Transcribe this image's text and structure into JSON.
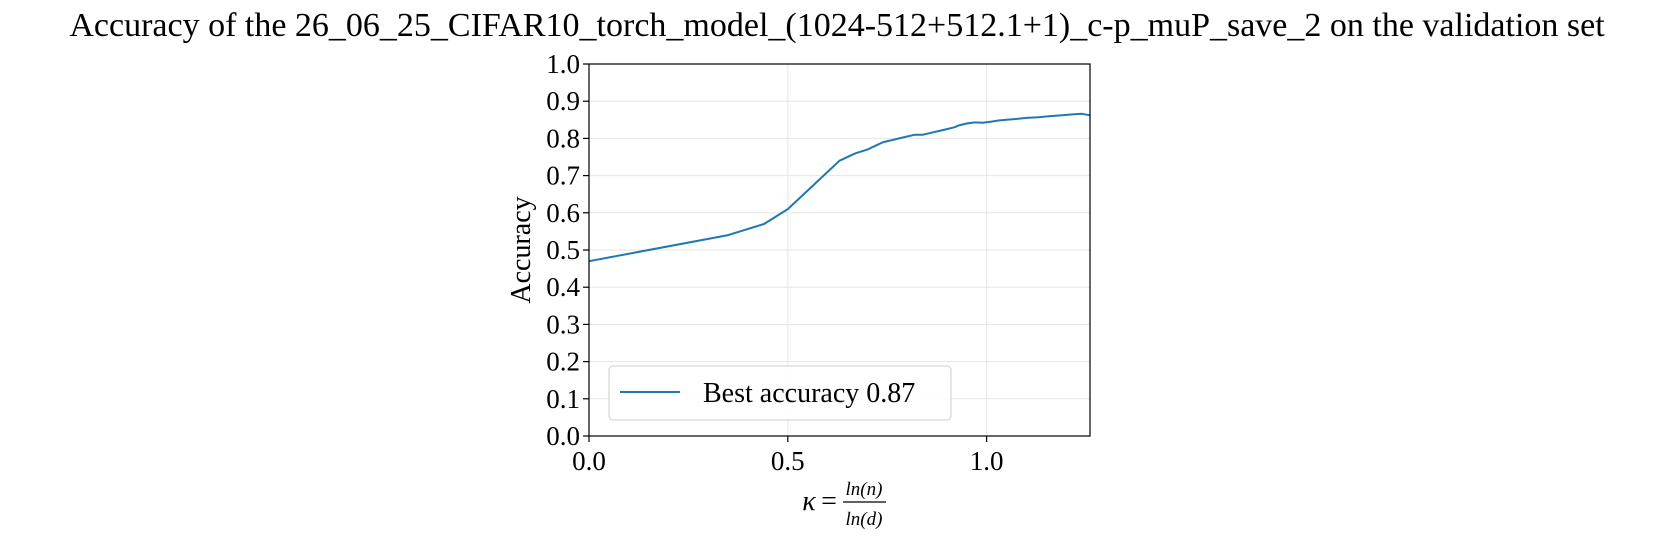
{
  "chart_data": {
    "type": "line",
    "title": "Accuracy of the 26_06_25_CIFAR10_torch_model_(1024-512+512.1+1)_c-p_muP_save_2 on the validation set",
    "xlabel": {
      "symbol": "κ",
      "equals": "=",
      "numerator": "ln(n)",
      "denominator": "ln(d)"
    },
    "ylabel": "Accuracy",
    "xlim": [
      0.0,
      1.26
    ],
    "ylim": [
      0.0,
      1.0
    ],
    "xticks": [
      0.0,
      0.5,
      1.0
    ],
    "xtick_labels": [
      "0.0",
      "0.5",
      "1.0"
    ],
    "yticks": [
      0.0,
      0.1,
      0.2,
      0.3,
      0.4,
      0.5,
      0.6,
      0.7,
      0.8,
      0.9,
      1.0
    ],
    "ytick_labels": [
      "0.0",
      "0.1",
      "0.2",
      "0.3",
      "0.4",
      "0.5",
      "0.6",
      "0.7",
      "0.8",
      "0.9",
      "1.0"
    ],
    "grid": true,
    "legend": {
      "placement": "lower-left",
      "entries": [
        "Best accuracy 0.87"
      ]
    },
    "colors": {
      "line": "#1f77b4",
      "grid": "#e6e6e6",
      "axes": "#000000",
      "legend_border": "#cccccc"
    },
    "series": [
      {
        "name": "Best accuracy 0.87",
        "x": [
          0.0,
          0.35,
          0.44,
          0.5,
          0.55,
          0.6,
          0.63,
          0.67,
          0.7,
          0.72,
          0.74,
          0.76,
          0.78,
          0.8,
          0.82,
          0.84,
          0.86,
          0.88,
          0.9,
          0.92,
          0.93,
          0.95,
          0.97,
          0.99,
          1.01,
          1.03,
          1.05,
          1.07,
          1.1,
          1.13,
          1.16,
          1.19,
          1.22,
          1.24,
          1.26
        ],
        "y": [
          0.47,
          0.54,
          0.57,
          0.61,
          0.66,
          0.71,
          0.74,
          0.76,
          0.77,
          0.78,
          0.79,
          0.795,
          0.8,
          0.805,
          0.81,
          0.81,
          0.815,
          0.82,
          0.825,
          0.83,
          0.835,
          0.84,
          0.843,
          0.842,
          0.845,
          0.848,
          0.85,
          0.852,
          0.855,
          0.857,
          0.86,
          0.862,
          0.865,
          0.866,
          0.862
        ]
      }
    ]
  }
}
